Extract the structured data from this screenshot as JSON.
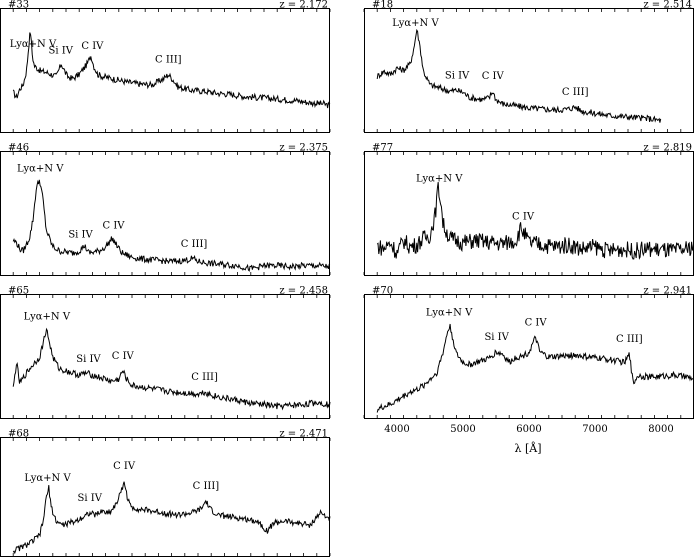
{
  "chart_data": [
    {
      "type": "line",
      "id": "#33",
      "redshift": "z = 2.172",
      "lines": [
        {
          "label": "Lyα+N V",
          "x": 4000
        },
        {
          "label": "Si IV",
          "x": 4420
        },
        {
          "label": "C IV",
          "x": 4900
        },
        {
          "label": "C III]",
          "x": 6050
        }
      ],
      "x": [
        3700,
        3750,
        3800,
        3850,
        3900,
        3930,
        3960,
        3990,
        4020,
        4060,
        4120,
        4200,
        4280,
        4350,
        4430,
        4480,
        4520,
        4600,
        4700,
        4820,
        4880,
        4920,
        4980,
        5060,
        5200,
        5400,
        5600,
        5800,
        5980,
        6050,
        6120,
        6200,
        6400,
        6600,
        6800,
        7000,
        7200,
        7400,
        7600,
        7800,
        8000,
        8200,
        8400,
        8500
      ],
      "y": [
        0.35,
        0.3,
        0.38,
        0.42,
        0.55,
        0.75,
        0.95,
        0.7,
        0.6,
        0.58,
        0.55,
        0.54,
        0.52,
        0.5,
        0.62,
        0.55,
        0.5,
        0.48,
        0.52,
        0.62,
        0.7,
        0.6,
        0.52,
        0.5,
        0.48,
        0.45,
        0.43,
        0.42,
        0.48,
        0.52,
        0.47,
        0.4,
        0.37,
        0.36,
        0.34,
        0.33,
        0.31,
        0.3,
        0.29,
        0.28,
        0.27,
        0.25,
        0.24,
        0.22
      ]
    },
    {
      "type": "line",
      "id": "#18",
      "redshift": "z = 2.514",
      "lines": [
        {
          "label": "Lyα+N V",
          "x": 4280
        },
        {
          "label": "Si IV",
          "x": 4910
        },
        {
          "label": "C IV",
          "x": 5450
        },
        {
          "label": "C III]",
          "x": 6700
        }
      ],
      "x": [
        3700,
        3800,
        3900,
        4000,
        4100,
        4200,
        4260,
        4300,
        4340,
        4400,
        4500,
        4600,
        4700,
        4800,
        4900,
        5000,
        5100,
        5200,
        5300,
        5400,
        5450,
        5500,
        5600,
        5800,
        6000,
        6200,
        6400,
        6600,
        6700,
        6800,
        7000,
        7200,
        7400,
        7600,
        7800,
        8000
      ],
      "y": [
        0.5,
        0.55,
        0.52,
        0.58,
        0.56,
        0.62,
        0.78,
        0.95,
        0.82,
        0.55,
        0.42,
        0.4,
        0.38,
        0.36,
        0.37,
        0.35,
        0.3,
        0.29,
        0.28,
        0.3,
        0.36,
        0.28,
        0.24,
        0.22,
        0.2,
        0.19,
        0.18,
        0.19,
        0.21,
        0.17,
        0.15,
        0.13,
        0.12,
        0.11,
        0.1,
        0.08
      ]
    },
    {
      "type": "line",
      "id": "#46",
      "redshift": "z = 2.375",
      "lines": [
        {
          "label": "Lyα+N V",
          "x": 4110
        },
        {
          "label": "Si IV",
          "x": 4720
        },
        {
          "label": "C IV",
          "x": 5220
        },
        {
          "label": "C III]",
          "x": 6440
        }
      ],
      "x": [
        3700,
        3750,
        3800,
        3850,
        3900,
        3950,
        4000,
        4050,
        4100,
        4150,
        4200,
        4300,
        4400,
        4500,
        4600,
        4700,
        4780,
        4850,
        5000,
        5100,
        5200,
        5250,
        5350,
        5500,
        5700,
        5900,
        6100,
        6300,
        6420,
        6500,
        6700,
        6900,
        7100,
        7300,
        7500,
        7700,
        7900,
        8100,
        8300,
        8500
      ],
      "y": [
        0.3,
        0.28,
        0.22,
        0.2,
        0.26,
        0.33,
        0.5,
        0.8,
        0.88,
        0.7,
        0.4,
        0.24,
        0.2,
        0.19,
        0.18,
        0.2,
        0.25,
        0.18,
        0.2,
        0.24,
        0.32,
        0.27,
        0.18,
        0.14,
        0.12,
        0.11,
        0.1,
        0.11,
        0.13,
        0.1,
        0.08,
        0.07,
        0.06,
        0.03,
        0.06,
        0.06,
        0.05,
        0.06,
        0.06,
        0.05
      ]
    },
    {
      "type": "line",
      "id": "#77",
      "redshift": "z = 2.819",
      "lines": [
        {
          "label": "Lyα+N V",
          "x": 4640
        },
        {
          "label": "C IV",
          "x": 5910
        }
      ],
      "x": [
        3700,
        3800,
        3900,
        4000,
        4100,
        4200,
        4300,
        4400,
        4500,
        4580,
        4620,
        4660,
        4700,
        4800,
        4900,
        5000,
        5200,
        5400,
        5600,
        5800,
        5880,
        5940,
        6000,
        6200,
        6400,
        6600,
        6800,
        7000,
        7200,
        7400,
        7600,
        7800,
        8000,
        8200,
        8400,
        8500
      ],
      "y": [
        0.25,
        0.22,
        0.28,
        0.18,
        0.3,
        0.24,
        0.26,
        0.32,
        0.35,
        0.55,
        0.8,
        0.7,
        0.45,
        0.32,
        0.3,
        0.28,
        0.3,
        0.28,
        0.27,
        0.3,
        0.42,
        0.35,
        0.28,
        0.26,
        0.24,
        0.26,
        0.22,
        0.24,
        0.2,
        0.22,
        0.2,
        0.22,
        0.21,
        0.2,
        0.22,
        0.25
      ]
    },
    {
      "type": "line",
      "id": "#65",
      "redshift": "z = 2.458",
      "lines": [
        {
          "label": "Lyα+N V",
          "x": 4210
        },
        {
          "label": "Si IV",
          "x": 4840
        },
        {
          "label": "C IV",
          "x": 5360
        },
        {
          "label": "C III]",
          "x": 6600
        }
      ],
      "x": [
        3700,
        3750,
        3800,
        3900,
        4000,
        4100,
        4160,
        4200,
        4240,
        4300,
        4400,
        4500,
        4600,
        4700,
        4800,
        4900,
        5000,
        5100,
        5200,
        5300,
        5360,
        5420,
        5500,
        5700,
        5900,
        6100,
        6300,
        6500,
        6600,
        6700,
        6900,
        7100,
        7300,
        7500,
        7700,
        7900,
        8100,
        8300,
        8500
      ],
      "y": [
        0.25,
        0.5,
        0.3,
        0.4,
        0.48,
        0.55,
        0.7,
        0.82,
        0.72,
        0.55,
        0.44,
        0.42,
        0.4,
        0.38,
        0.4,
        0.38,
        0.36,
        0.34,
        0.32,
        0.34,
        0.42,
        0.34,
        0.28,
        0.26,
        0.24,
        0.22,
        0.21,
        0.2,
        0.22,
        0.19,
        0.16,
        0.14,
        0.11,
        0.1,
        0.08,
        0.09,
        0.1,
        0.12,
        0.1
      ]
    },
    {
      "type": "line",
      "id": "#70",
      "redshift": "z = 2.941",
      "lines": [
        {
          "label": "Lyα+N V",
          "x": 4790
        },
        {
          "label": "Si IV",
          "x": 5510
        },
        {
          "label": "C IV",
          "x": 6100
        },
        {
          "label": "C III]",
          "x": 7520
        }
      ],
      "x": [
        3700,
        3800,
        3900,
        4000,
        4100,
        4200,
        4300,
        4400,
        4500,
        4600,
        4700,
        4760,
        4800,
        4850,
        4900,
        5000,
        5100,
        5200,
        5300,
        5400,
        5500,
        5600,
        5700,
        5800,
        5900,
        6000,
        6060,
        6100,
        6160,
        6300,
        6500,
        6700,
        6900,
        7100,
        7300,
        7450,
        7520,
        7580,
        7650,
        7800,
        8000,
        8200,
        8400,
        8500
      ],
      "y": [
        0.05,
        0.08,
        0.1,
        0.14,
        0.18,
        0.22,
        0.24,
        0.28,
        0.34,
        0.4,
        0.6,
        0.78,
        0.85,
        0.72,
        0.58,
        0.5,
        0.48,
        0.5,
        0.52,
        0.54,
        0.6,
        0.58,
        0.5,
        0.55,
        0.56,
        0.6,
        0.68,
        0.74,
        0.6,
        0.55,
        0.56,
        0.57,
        0.55,
        0.54,
        0.52,
        0.5,
        0.58,
        0.3,
        0.38,
        0.36,
        0.37,
        0.38,
        0.36,
        0.34
      ]
    },
    {
      "type": "line",
      "id": "#68",
      "redshift": "z = 2.471",
      "lines": [
        {
          "label": "Lyα+N V",
          "x": 4220
        },
        {
          "label": "Si IV",
          "x": 4860
        },
        {
          "label": "C IV",
          "x": 5380
        },
        {
          "label": "C III]",
          "x": 6620
        }
      ],
      "x": [
        3700,
        3800,
        3900,
        4000,
        4100,
        4150,
        4200,
        4240,
        4280,
        4350,
        4450,
        4550,
        4650,
        4750,
        4850,
        4950,
        5050,
        5150,
        5250,
        5330,
        5380,
        5420,
        5480,
        5600,
        5800,
        6000,
        6200,
        6400,
        6550,
        6620,
        6680,
        6800,
        7000,
        7200,
        7400,
        7550,
        7650,
        7800,
        8000,
        8200,
        8350,
        8450,
        8500
      ],
      "y": [
        0.02,
        0.05,
        0.08,
        0.12,
        0.18,
        0.3,
        0.55,
        0.65,
        0.45,
        0.32,
        0.28,
        0.3,
        0.32,
        0.36,
        0.4,
        0.38,
        0.42,
        0.4,
        0.48,
        0.6,
        0.72,
        0.58,
        0.46,
        0.44,
        0.42,
        0.4,
        0.38,
        0.4,
        0.44,
        0.52,
        0.44,
        0.38,
        0.36,
        0.34,
        0.32,
        0.22,
        0.3,
        0.32,
        0.3,
        0.28,
        0.4,
        0.36,
        0.34
      ]
    }
  ],
  "xaxis": {
    "label": "λ [Å]",
    "ticks": [
      4000,
      5000,
      6000,
      7000,
      8000
    ],
    "range": [
      3500,
      8500
    ]
  }
}
